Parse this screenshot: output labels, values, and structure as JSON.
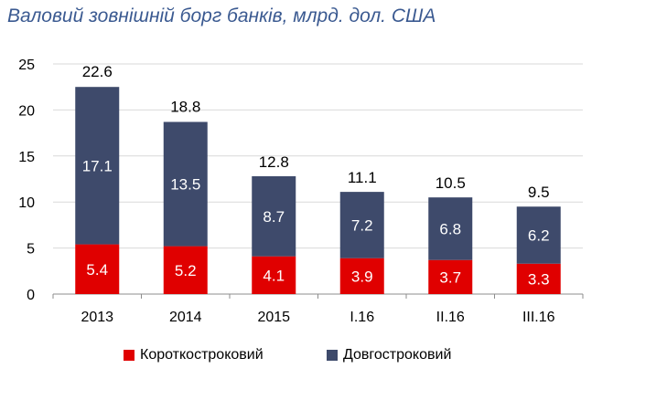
{
  "title": "Валовий зовнішній борг банків, млрд. дол. США",
  "chart_data": {
    "type": "bar",
    "stacked": true,
    "title": "Валовий зовнішній борг банків, млрд. дол. США",
    "categories": [
      "2013",
      "2014",
      "2015",
      "I.16",
      "II.16",
      "III.16"
    ],
    "series": [
      {
        "name": "Короткостроковий",
        "color": "#e00000",
        "values": [
          5.4,
          5.2,
          4.1,
          3.9,
          3.7,
          3.3
        ]
      },
      {
        "name": "Довгостроковий",
        "color": "#3e4a6b",
        "values": [
          17.1,
          13.5,
          8.7,
          7.2,
          6.8,
          6.2
        ]
      }
    ],
    "totals": [
      22.6,
      18.8,
      12.8,
      11.1,
      10.5,
      9.5
    ],
    "total_labels": [
      "22.6",
      "18.8",
      "12.8",
      "11.1",
      "10.5",
      "9.5"
    ],
    "segment_labels": [
      [
        "5.4",
        "5.2",
        "4.1",
        "3.9",
        "3.7",
        "3.3"
      ],
      [
        "17.1",
        "13.5",
        "8.7",
        "7.2",
        "6.8",
        "6.2"
      ]
    ],
    "ylim": [
      0,
      25
    ],
    "yticks": [
      0,
      5,
      10,
      15,
      20,
      25
    ],
    "grid": true,
    "legend_position": "bottom",
    "xlabel": "",
    "ylabel": ""
  }
}
